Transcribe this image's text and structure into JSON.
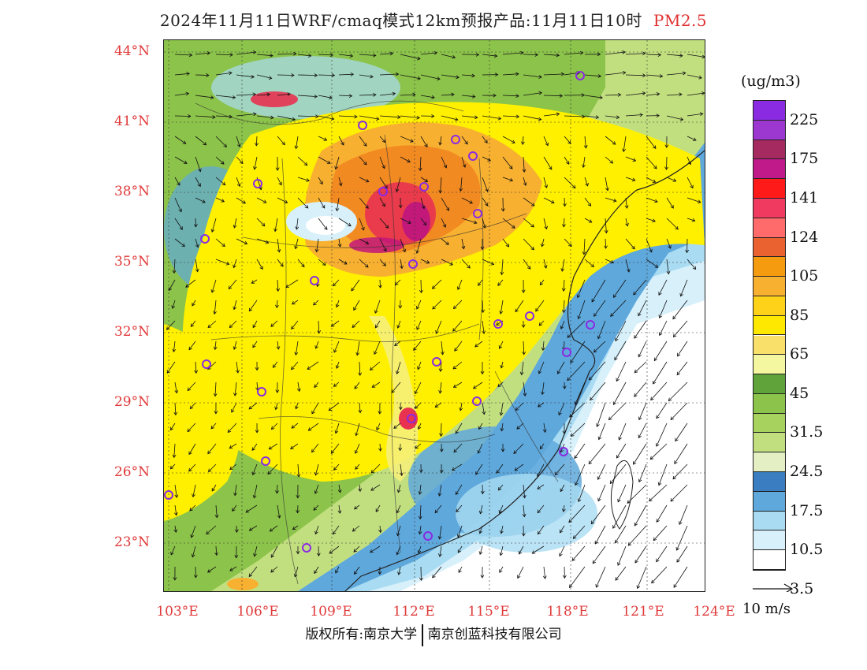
{
  "title": {
    "main": "2024年11月11日WRF/cmaq模式12km预报产品:11月11日10时",
    "pollutant": "PM2.5"
  },
  "map": {
    "lat_labels": [
      "44°N",
      "41°N",
      "38°N",
      "35°N",
      "32°N",
      "29°N",
      "26°N",
      "23°N"
    ],
    "lon_labels": [
      "103°E",
      "106°E",
      "109°E",
      "112°E",
      "115°E",
      "118°E",
      "121°E",
      "124°E"
    ],
    "field": "PM2.5 concentration with 10 m wind vectors",
    "colors": {
      "very_low": "#ffffff",
      "low": "#d7f0fa",
      "light_blue": "#a9dcf3",
      "blue": "#5fa8dc",
      "dark_blue": "#3a7dc0",
      "pale_green": "#e4f0c4",
      "green": "#b7dc74",
      "mid_green": "#8cc34a",
      "dark_green": "#5fa33a",
      "yellow": "#fff000",
      "light_yellow": "#f5f07a",
      "orange": "#f8a52a",
      "dark_orange": "#f07d1e",
      "red": "#e83250",
      "magenta": "#c2187a"
    }
  },
  "colorbar": {
    "unit": "(ug/m3)",
    "labels": [
      "225",
      "175",
      "141",
      "124",
      "105",
      "85",
      "65",
      "45",
      "31.5",
      "24.5",
      "17.5",
      "10.5",
      "3.5"
    ],
    "swatches": [
      "#8a2be2",
      "#9c38d0",
      "#a52a60",
      "#c01a8a",
      "#ff1a1a",
      "#f03a60",
      "#ff6a6a",
      "#ea6230",
      "#f59b10",
      "#f8b030",
      "#ffd21a",
      "#ffe800",
      "#f8e06a",
      "#f5f7a0",
      "#5fa33a",
      "#8cc34a",
      "#a7d25e",
      "#c2df80",
      "#e4f0c4",
      "#3a7dc0",
      "#5fa8dc",
      "#a9dcf3",
      "#d7f0fa",
      "#ffffff"
    ]
  },
  "vector_key": {
    "label": "10 m/s"
  },
  "footer": {
    "left": "版权所有:南京大学",
    "right": "南京创蓝科技有限公司"
  }
}
